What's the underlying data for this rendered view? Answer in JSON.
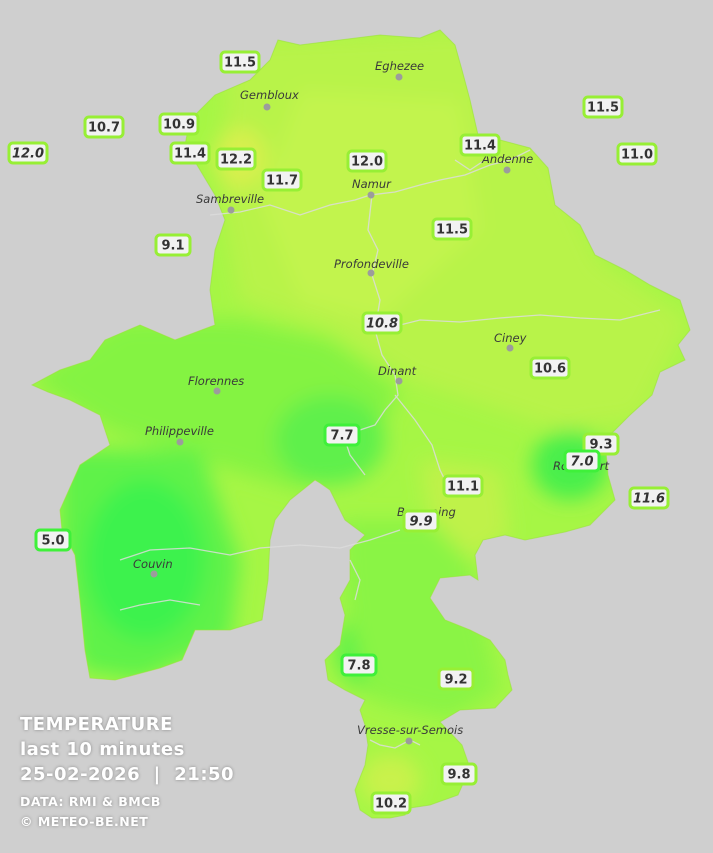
{
  "legend": {
    "title": "TEMPERATURE",
    "subtitle": "last 10 minutes",
    "datetime": "25-02-2026  |  21:50",
    "source": "DATA: RMI & BMCB",
    "copyright": "© METEO-BE.NET"
  },
  "colors": {
    "background": "#cfcfcf",
    "warm": "#c8f550",
    "mid": "#8ff840",
    "cool": "#55f548",
    "coolest": "#33f050",
    "border_normal": "#97ef35",
    "border_cool": "#3ff03a",
    "rivers": "#dcdcdc"
  },
  "cities": [
    "Eghezee",
    "Gembloux",
    "Andenne",
    "Namur",
    "Sambreville",
    "Profondeville",
    "Ciney",
    "Dinant",
    "Florennes",
    "Philippeville",
    "Rochefort",
    "Beauraing",
    "Couvin",
    "Vresse-sur-Semois"
  ],
  "stations": [
    {
      "value": "11.5",
      "italic": false,
      "tone": "normal"
    },
    {
      "value": "10.9",
      "italic": false,
      "tone": "normal"
    },
    {
      "value": "10.7",
      "italic": false,
      "tone": "normal"
    },
    {
      "value": "12.0",
      "italic": true,
      "tone": "normal"
    },
    {
      "value": "11.4",
      "italic": false,
      "tone": "normal"
    },
    {
      "value": "12.2",
      "italic": false,
      "tone": "normal"
    },
    {
      "value": "11.7",
      "italic": false,
      "tone": "normal"
    },
    {
      "value": "12.0",
      "italic": false,
      "tone": "normal"
    },
    {
      "value": "11.4",
      "italic": false,
      "tone": "normal"
    },
    {
      "value": "11.5",
      "italic": false,
      "tone": "normal"
    },
    {
      "value": "11.0",
      "italic": false,
      "tone": "normal"
    },
    {
      "value": "9.1",
      "italic": false,
      "tone": "normal"
    },
    {
      "value": "11.5",
      "italic": false,
      "tone": "normal"
    },
    {
      "value": "10.8",
      "italic": true,
      "tone": "normal"
    },
    {
      "value": "10.6",
      "italic": false,
      "tone": "normal"
    },
    {
      "value": "7.7",
      "italic": false,
      "tone": "cool"
    },
    {
      "value": "9.3",
      "italic": false,
      "tone": "normal"
    },
    {
      "value": "7.0",
      "italic": true,
      "tone": "cool"
    },
    {
      "value": "11.1",
      "italic": false,
      "tone": "normal"
    },
    {
      "value": "11.6",
      "italic": true,
      "tone": "normal"
    },
    {
      "value": "9.9",
      "italic": true,
      "tone": "normal"
    },
    {
      "value": "5.0",
      "italic": false,
      "tone": "cool"
    },
    {
      "value": "7.8",
      "italic": false,
      "tone": "cool"
    },
    {
      "value": "9.2",
      "italic": false,
      "tone": "normal"
    },
    {
      "value": "9.8",
      "italic": false,
      "tone": "normal"
    },
    {
      "value": "10.2",
      "italic": false,
      "tone": "normal"
    }
  ]
}
